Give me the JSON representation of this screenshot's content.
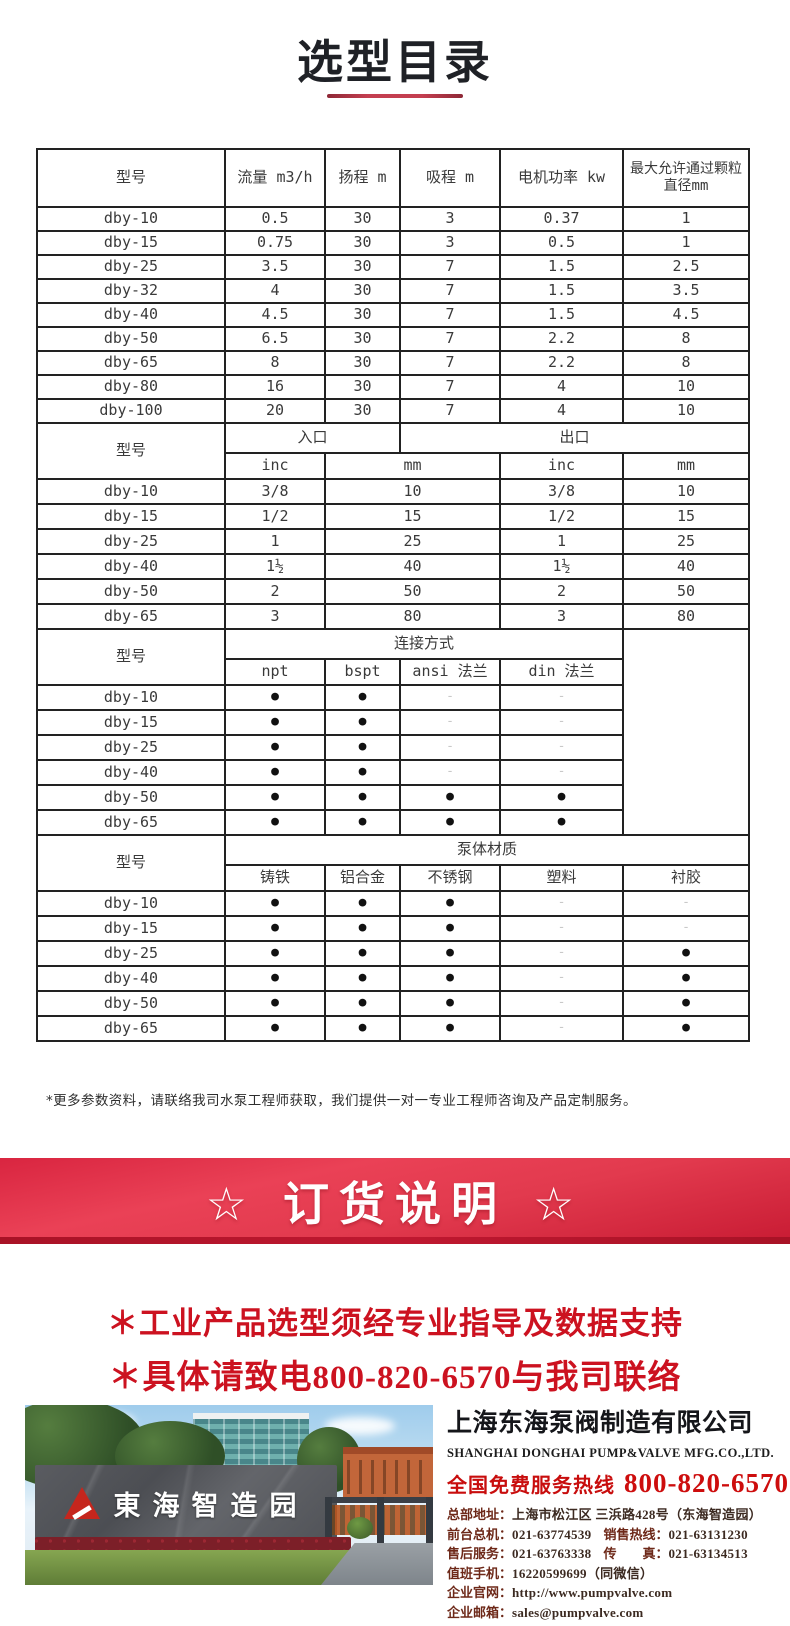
{
  "page": {
    "title": "选型目录",
    "note": "*更多参数资料，请联络我司水泵工程师获取，我们提供一对一专业工程师咨询及产品定制服务。",
    "banner_text": "☆ 订货说明 ☆",
    "slogan1": "＊工业产品选型须经专业指导及数据支持",
    "slogan2": "＊具体请致电800-820-6570与我司联络"
  },
  "spec_table": {
    "headers": [
      "型号",
      "流量 m3/h",
      "扬程 m",
      "吸程 m",
      "电机功率 kw",
      "最大允许通过颗粒直径mm"
    ],
    "rows": [
      [
        "dby-10",
        "0.5",
        "30",
        "3",
        "0.37",
        "1"
      ],
      [
        "dby-15",
        "0.75",
        "30",
        "3",
        "0.5",
        "1"
      ],
      [
        "dby-25",
        "3.5",
        "30",
        "7",
        "1.5",
        "2.5"
      ],
      [
        "dby-32",
        "4",
        "30",
        "7",
        "1.5",
        "3.5"
      ],
      [
        "dby-40",
        "4.5",
        "30",
        "7",
        "1.5",
        "4.5"
      ],
      [
        "dby-50",
        "6.5",
        "30",
        "7",
        "2.2",
        "8"
      ],
      [
        "dby-65",
        "8",
        "30",
        "7",
        "2.2",
        "8"
      ],
      [
        "dby-80",
        "16",
        "30",
        "7",
        "4",
        "10"
      ],
      [
        "dby-100",
        "20",
        "30",
        "7",
        "4",
        "10"
      ]
    ]
  },
  "port_table": {
    "model_header": "型号",
    "inlet_header": "入口",
    "outlet_header": "出口",
    "sub_headers": [
      "inc",
      "mm",
      "inc",
      "mm"
    ],
    "rows": [
      [
        "dby-10",
        "3/8",
        "10",
        "3/8",
        "10"
      ],
      [
        "dby-15",
        "1/2",
        "15",
        "1/2",
        "15"
      ],
      [
        "dby-25",
        "1",
        "25",
        "1",
        "25"
      ],
      [
        "dby-40",
        "1½",
        "40",
        "1½",
        "40"
      ],
      [
        "dby-50",
        "2",
        "50",
        "2",
        "50"
      ],
      [
        "dby-65",
        "3",
        "80",
        "3",
        "80"
      ]
    ]
  },
  "connection_table": {
    "model_header": "型号",
    "group_header": "连接方式",
    "sub_headers": [
      "npt",
      "bspt",
      "ansi 法兰",
      "din 法兰"
    ],
    "rows": [
      [
        "dby-10",
        "●",
        "●",
        "-",
        "-"
      ],
      [
        "dby-15",
        "●",
        "●",
        "-",
        "-"
      ],
      [
        "dby-25",
        "●",
        "●",
        "-",
        "-"
      ],
      [
        "dby-40",
        "●",
        "●",
        "-",
        "-"
      ],
      [
        "dby-50",
        "●",
        "●",
        "●",
        "●"
      ],
      [
        "dby-65",
        "●",
        "●",
        "●",
        "●"
      ]
    ]
  },
  "material_table": {
    "model_header": "型号",
    "group_header": "泵体材质",
    "sub_headers": [
      "铸铁",
      "铝合金",
      "不锈钢",
      "塑料",
      "衬胶"
    ],
    "rows": [
      [
        "dby-10",
        "●",
        "●",
        "●",
        "-",
        "-"
      ],
      [
        "dby-15",
        "●",
        "●",
        "●",
        "-",
        "-"
      ],
      [
        "dby-25",
        "●",
        "●",
        "●",
        "-",
        "●"
      ],
      [
        "dby-40",
        "●",
        "●",
        "●",
        "-",
        "●"
      ],
      [
        "dby-50",
        "●",
        "●",
        "●",
        "-",
        "●"
      ],
      [
        "dby-65",
        "●",
        "●",
        "●",
        "-",
        "●"
      ]
    ]
  },
  "company": {
    "name": "上海东海泵阀制造有限公司",
    "name_en": "SHANGHAI DONGHAI PUMP&VALVE MFG.CO.,LTD.",
    "hotline_label": "全国免费服务热线",
    "hotline": "800-820-6570",
    "photo_sign": "東海智造园",
    "contacts": [
      {
        "label": "总部地址：",
        "value": "上海市松江区 三浜路428号（东海智造园）"
      },
      {
        "label": "前台总机：",
        "value": "021-63774539",
        "label2": "销售热线：",
        "value2": "021-63131230"
      },
      {
        "label": "售后服务：",
        "value": "021-63763338",
        "label2": "传　　真：",
        "value2": "021-63134513"
      },
      {
        "label": "值班手机：",
        "value": "16220599699（同微信）"
      },
      {
        "label": "企业官网：",
        "value": "http://www.pumpvalve.com"
      },
      {
        "label": "企业邮箱：",
        "value": "sales@pumpvalve.com"
      }
    ]
  },
  "colors": {
    "banner_red": "#e23a4e",
    "banner_red_dark": "#a81226",
    "slogan_red": "#cc1220",
    "hotline_red": "#c80d0d",
    "underline_red": "#c43e50",
    "table_line": "#222222",
    "contact_label_maroon": "#6d2818",
    "logo_red": "#c5261d"
  }
}
